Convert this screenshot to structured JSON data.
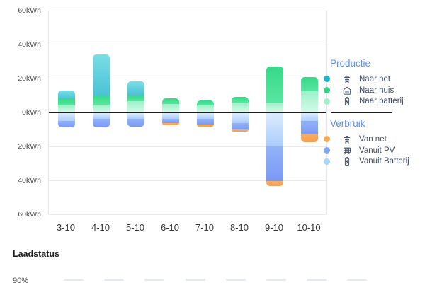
{
  "chart_data": {
    "type": "bar",
    "stacked": true,
    "diverging": true,
    "unit": "kWh",
    "title": "",
    "xlabel": "",
    "ylabel": "",
    "ylim": [
      -60,
      60
    ],
    "y_tick_step": 20,
    "y_tick_labels": [
      "60kWh",
      "40kWh",
      "20kWh",
      "0kWh",
      "20kWh",
      "40kWh",
      "60kWh"
    ],
    "grid": "horizontal",
    "legend_position": "right",
    "categories": [
      "3-10",
      "4-10",
      "5-10",
      "6-10",
      "7-10",
      "8-10",
      "9-10",
      "10-10"
    ],
    "production": {
      "header": "Productie",
      "header_color": "#5d8ff2",
      "series": [
        {
          "name": "Naar net",
          "icon": "pylon-icon",
          "dot_color": "#12b7ca",
          "gradient": [
            "#7adde6",
            "#49c2d4"
          ],
          "values": [
            5,
            24,
            8.5,
            0,
            0,
            0,
            0,
            0
          ]
        },
        {
          "name": "Naar huis",
          "icon": "house-icon",
          "dot_color": "#35d586",
          "gradient": [
            "#36d987",
            "#58e6a0"
          ],
          "values": [
            4,
            5.5,
            3.5,
            3.5,
            3,
            3,
            21,
            8.5
          ]
        },
        {
          "name": "Naar batterij",
          "icon": "battery-icon",
          "dot_color": "#9ff0c6",
          "gradient": [
            "#9bf1c7",
            "#d6fae9"
          ],
          "values": [
            4,
            4.5,
            6.5,
            5,
            4,
            6,
            6,
            12.5
          ]
        }
      ]
    },
    "consumption": {
      "header": "Verbruik",
      "header_color": "#5d8ff2",
      "series": [
        {
          "name": "Van net",
          "icon": "pylon-icon",
          "dot_color": "#f9a84e",
          "gradient": [
            "#f9ac62",
            "#f5a050"
          ],
          "values": [
            0,
            0,
            0,
            1,
            1.5,
            1.5,
            3,
            4.5
          ]
        },
        {
          "name": "Vanuit PV",
          "icon": "solar-panel-icon",
          "dot_color": "#82a4f7",
          "gradient": [
            "#92b3f9",
            "#7b99f4"
          ],
          "values": [
            4,
            5,
            4.5,
            2.5,
            3,
            3.5,
            20.5,
            8
          ]
        },
        {
          "name": "Vanuit Batterij",
          "icon": "battery-icon",
          "dot_color": "#a9d4fb",
          "gradient": [
            "#dcecfe",
            "#abccfa"
          ],
          "values": [
            4.5,
            3.5,
            3.5,
            3.5,
            3.5,
            6,
            19.5,
            4.5
          ]
        }
      ]
    }
  },
  "laadstatus": {
    "title": "Laadstatus",
    "visible_tick_label": "90%"
  }
}
